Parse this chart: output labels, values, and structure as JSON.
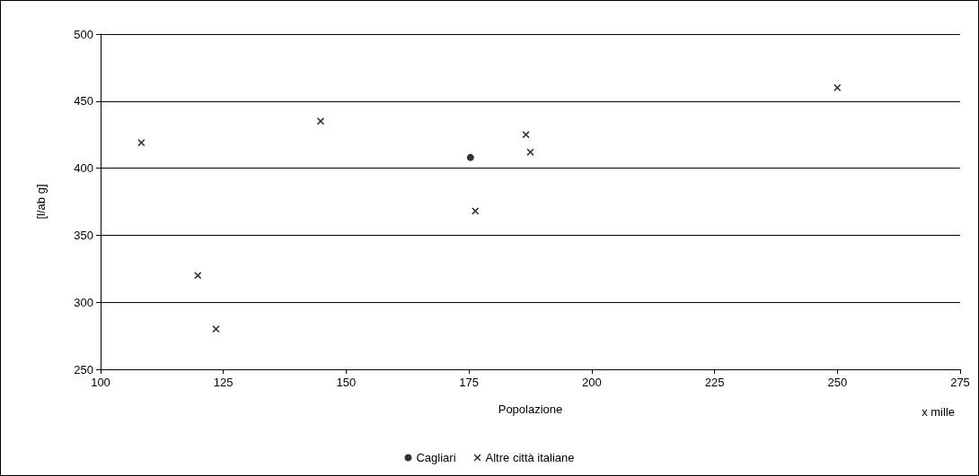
{
  "chart_data": {
    "type": "scatter",
    "xlabel": "Popolazione",
    "ylabel": "[l/ab g]",
    "annotations": [
      "x mille"
    ],
    "series": [
      {
        "name": "Cagliari",
        "color": "#000000",
        "marker": "circle",
        "x": [
          175.3
        ],
        "values": [
          408
        ]
      },
      {
        "name": "Altre città italiane",
        "color": "#000000",
        "marker": "cross",
        "x": [
          108.3,
          119.8,
          123.5,
          144.8,
          176.3,
          186.6,
          187.5,
          250
        ],
        "values": [
          419,
          320,
          280,
          435,
          368,
          425,
          412,
          460
        ]
      }
    ],
    "xlim": [
      100,
      275
    ],
    "xticks": [
      100,
      125,
      150,
      175,
      200,
      225,
      250,
      275
    ],
    "ylim": [
      250,
      500
    ],
    "yticks": [
      250,
      300,
      350,
      400,
      450,
      500
    ],
    "grid": "y",
    "legend": "bottom"
  }
}
